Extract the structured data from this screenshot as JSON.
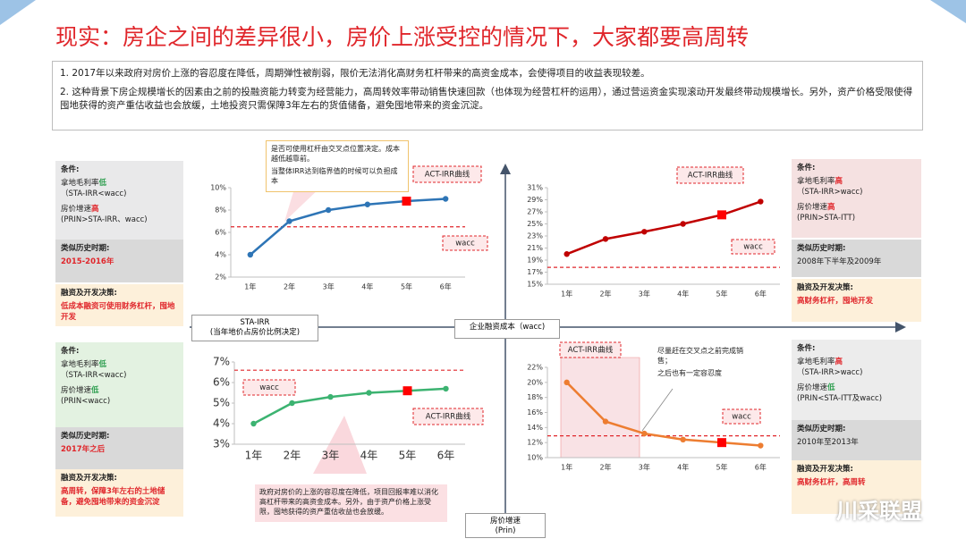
{
  "title": "现实：房企之间的差异很小，房价上涨受控的情况下，大家都要高周转",
  "notes": [
    "1. 2017年以来政府对房价上涨的容忍度在降低，周期弹性被削弱，限价无法消化高财务杠杆带来的高资金成本，会使得项目的收益表现较差。",
    "2. 这种背景下房企规模增长的因素由之前的投融资能力转变为经营能力，高周转效率带动销售快速回款（也体现为经营杠杆的运用），通过营运资金实现滚动开发最终带动规模增长。另外，资产价格受限使得囤地获得的资产重估收益也会放缓，土地投资只需保障3年左右的货值储备，避免囤地带来的资金沉淀。"
  ],
  "axis_labels": {
    "left": [
      "STA-IRR",
      "(当年地价占房价比例决定)"
    ],
    "center": [
      "企业融资成本（wacc)"
    ],
    "bottom": [
      "房价增速",
      "(Prin)"
    ]
  },
  "callouts": [
    [
      "是否可使用杠杆由交叉点位置决定。成本越低越靠前。",
      "当整体IRR达到临界值的时候可以负担成本"
    ],
    [
      "尽量赶在交叉点之前完成销售；",
      "之后也有一定容忍度"
    ],
    [
      "政府对房价的上涨的容忍度在降低，项目回报率难以消化高杠杆带来的高资金成本。另外，由于资产价格上涨受限，囤地获得的资产重估收益也会放缓。"
    ]
  ],
  "panels": [
    {
      "sections": [
        {
          "heading": "条件:",
          "items": [
            [
              {
                "text": "拿地毛利率"
              },
              {
                "text": "低",
                "color": "#2e9e4f"
              }
            ],
            [
              {
                "text": "（STA-IRR<wacc)"
              }
            ],
            [
              {
                "text": "房价增速"
              },
              {
                "text": "高",
                "color": "#e0262b"
              }
            ],
            [
              {
                "text": "(PRIN>STA-IRR、wacc)"
              }
            ]
          ]
        },
        {
          "heading": "类似历史时期:",
          "items": [
            [
              {
                "text": "2015-2016年",
                "color": "#e0262b"
              }
            ]
          ]
        },
        {
          "heading": "融资及开发决策:",
          "items": [
            [
              {
                "text": "低成本融资可使用财务杠杆，囤地开发",
                "color": "#e0262b"
              }
            ]
          ]
        }
      ]
    },
    {
      "sections": [
        {
          "heading": "条件:",
          "items": [
            [
              {
                "text": "拿地毛利率"
              },
              {
                "text": "高",
                "color": "#e0262b"
              }
            ],
            [
              {
                "text": "（STA-IRR>wacc)"
              }
            ],
            [
              {
                "text": "房价增速"
              },
              {
                "text": "高",
                "color": "#e0262b"
              }
            ],
            [
              {
                "text": "(PRIN>STA-ITT)"
              }
            ]
          ]
        },
        {
          "heading": "类似历史时期:",
          "items": [
            [
              {
                "text": "2008年下半年及2009年"
              }
            ]
          ]
        },
        {
          "heading": "融资及开发决策:",
          "items": [
            [
              {
                "text": "高财务杠杆，囤地开发",
                "color": "#e0262b"
              }
            ]
          ]
        }
      ]
    },
    {
      "sections": [
        {
          "heading": "条件:",
          "items": [
            [
              {
                "text": "拿地毛利率"
              },
              {
                "text": "低",
                "color": "#2e9e4f"
              }
            ],
            [
              {
                "text": "（STA-IRR<wacc)"
              }
            ],
            [
              {
                "text": "房价增速"
              },
              {
                "text": "低",
                "color": "#2e9e4f"
              }
            ],
            [
              {
                "text": "(PRIN<wacc)"
              }
            ]
          ]
        },
        {
          "heading": "类似历史时期:",
          "items": [
            [
              {
                "text": "2017年之后",
                "color": "#e0262b"
              }
            ]
          ]
        },
        {
          "heading": "融资及开发决策:",
          "items": [
            [
              {
                "text": "高周转，保障3年左右的土地储备，避免囤地带来的资金沉淀",
                "color": "#e0262b"
              }
            ]
          ]
        }
      ]
    },
    {
      "sections": [
        {
          "heading": "条件:",
          "items": [
            [
              {
                "text": "拿地毛利率"
              },
              {
                "text": "高",
                "color": "#e0262b"
              }
            ],
            [
              {
                "text": "（STA-IRR>wacc)"
              }
            ],
            [
              {
                "text": "房价增速"
              },
              {
                "text": "低",
                "color": "#2e9e4f"
              }
            ],
            [
              {
                "text": "(PRIN<STA-ITT及wacc)"
              }
            ]
          ]
        },
        {
          "heading": "类似历史时期:",
          "items": [
            [
              {
                "text": "2010年至2013年"
              }
            ]
          ]
        },
        {
          "heading": "融资及开发决策:",
          "items": [
            [
              {
                "text": "高财务杠杆，高周转",
                "color": "#e0262b"
              }
            ]
          ]
        }
      ]
    }
  ],
  "watermark": "川采联盟",
  "chart_data": [
    {
      "type": "line",
      "categories": [
        "1年",
        "2年",
        "3年",
        "4年",
        "5年",
        "6年"
      ],
      "values": [
        4.0,
        7.0,
        8.0,
        8.5,
        8.8,
        9.0
      ],
      "color": "#2e75b6",
      "ylim": [
        2,
        10
      ],
      "yticks": [
        {
          "value": 2,
          "label": "2%"
        },
        {
          "value": 4,
          "label": "4%"
        },
        {
          "value": 6,
          "label": "6%"
        },
        {
          "value": 8,
          "label": "8%"
        },
        {
          "value": 10,
          "label": "10%"
        }
      ],
      "curve_label": "ACT-IRR曲线",
      "reference": {
        "label": "wacc",
        "value": 6.5
      },
      "highlight_index": 4
    },
    {
      "type": "line",
      "categories": [
        "1年",
        "2年",
        "3年",
        "4年",
        "5年",
        "6年"
      ],
      "values": [
        20,
        22.5,
        23.7,
        25,
        26.5,
        28.7
      ],
      "color": "#c00000",
      "ylim": [
        15,
        31
      ],
      "yticks": [
        {
          "value": 15,
          "label": "15%"
        },
        {
          "value": 17,
          "label": "17%"
        },
        {
          "value": 19,
          "label": "19%"
        },
        {
          "value": 21,
          "label": "21%"
        },
        {
          "value": 23,
          "label": "23%"
        },
        {
          "value": 25,
          "label": "25%"
        },
        {
          "value": 27,
          "label": "27%"
        },
        {
          "value": 29,
          "label": "29%"
        },
        {
          "value": 31,
          "label": "31%"
        }
      ],
      "curve_label": "ACT-IRR曲线",
      "reference": {
        "label": "wacc",
        "value": 17.8
      },
      "highlight_index": 4
    },
    {
      "type": "line",
      "categories": [
        "1年",
        "2年",
        "3年",
        "4年",
        "5年",
        "6年"
      ],
      "values": [
        4.0,
        5.0,
        5.3,
        5.5,
        5.6,
        5.7
      ],
      "color": "#3cb371",
      "ylim": [
        3,
        7
      ],
      "yticks": [
        {
          "value": 3,
          "label": "3%"
        },
        {
          "value": 4,
          "label": "4%"
        },
        {
          "value": 5,
          "label": "5%"
        },
        {
          "value": 6,
          "label": "6%"
        },
        {
          "value": 7,
          "label": "7%"
        }
      ],
      "curve_label": "ACT-IRR曲线",
      "reference": {
        "label": "wacc",
        "value": 6.6
      },
      "highlight_index": 4
    },
    {
      "type": "line",
      "categories": [
        "1年",
        "2年",
        "3年",
        "4年",
        "5年",
        "6年"
      ],
      "values": [
        20,
        14.8,
        13.2,
        12.4,
        12.0,
        11.6
      ],
      "color": "#ed7d31",
      "ylim": [
        10,
        22
      ],
      "yticks": [
        {
          "value": 10,
          "label": "10%"
        },
        {
          "value": 12,
          "label": "12%"
        },
        {
          "value": 14,
          "label": "14%"
        },
        {
          "value": 16,
          "label": "16%"
        },
        {
          "value": 18,
          "label": "18%"
        },
        {
          "value": 20,
          "label": "20%"
        },
        {
          "value": 22,
          "label": "22%"
        }
      ],
      "curve_label": "ACT-IRR曲线",
      "reference": {
        "label": "wacc",
        "value": 12.9
      },
      "highlight_index": 4
    }
  ]
}
